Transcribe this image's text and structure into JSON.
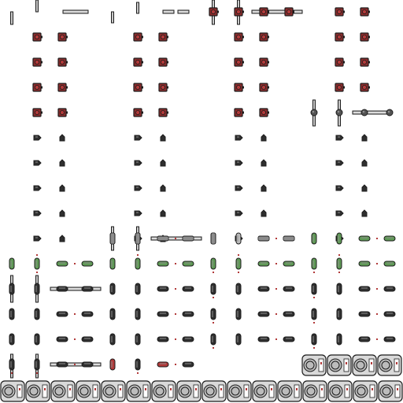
{
  "sheet": {
    "background": "#ffffff",
    "outline": "#1c1c1c",
    "colors": {
      "dark": "#2f2f2f",
      "steel": "#545454",
      "steel_light": "#8f8f8f",
      "pipe": "#c9c9c9",
      "red": "#b23a3a",
      "red_fill": "#8c2c2c",
      "green": "#5f9a56",
      "machine": "#d9d9d9",
      "machine_panel": "#bcbcbc"
    },
    "icons": {
      "valve": "valve-icon",
      "cap": "pipe-cap-icon",
      "pump": "pump-icon",
      "connector": "connector-dot-icon",
      "machine": "fan-machine-icon",
      "pipe": "pipe-segment-icon"
    }
  }
}
